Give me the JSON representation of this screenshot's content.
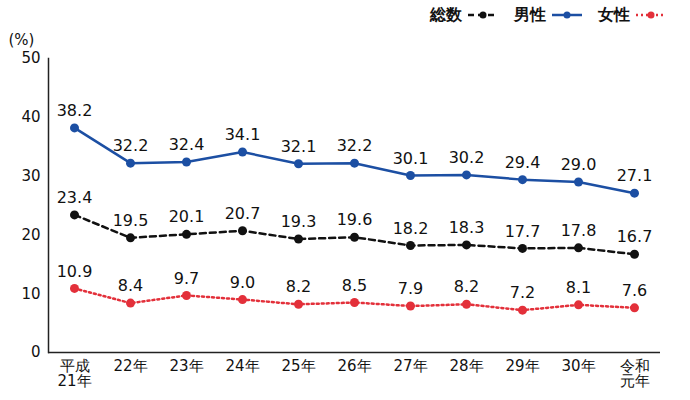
{
  "chart_data": {
    "type": "line",
    "y_label": "(%)",
    "categories": [
      "平成\n21年",
      "22年",
      "23年",
      "24年",
      "25年",
      "26年",
      "27年",
      "28年",
      "29年",
      "30年",
      "令和\n元年"
    ],
    "series": [
      {
        "name": "総数",
        "color": "#111111",
        "line_style": "dashed",
        "marker": "circle",
        "values": [
          23.4,
          19.5,
          20.1,
          20.7,
          19.3,
          19.6,
          18.2,
          18.3,
          17.7,
          17.8,
          16.7
        ],
        "value_labels": [
          "23.4",
          "19.5",
          "20.1",
          "20.7",
          "19.3",
          "19.6",
          "18.2",
          "18.3",
          "17.7",
          "17.8",
          "16.7"
        ]
      },
      {
        "name": "男性",
        "color": "#1c4fa3",
        "line_style": "solid",
        "marker": "circle",
        "values": [
          38.2,
          32.2,
          32.4,
          34.1,
          32.1,
          32.2,
          30.1,
          30.2,
          29.4,
          29.0,
          27.1
        ],
        "value_labels": [
          "38.2",
          "32.2",
          "32.4",
          "34.1",
          "32.1",
          "32.2",
          "30.1",
          "30.2",
          "29.4",
          "29.0",
          "27.1"
        ]
      },
      {
        "name": "女性",
        "color": "#e3303a",
        "line_style": "dotted",
        "marker": "circle",
        "values": [
          10.9,
          8.4,
          9.7,
          9.0,
          8.2,
          8.5,
          7.9,
          8.2,
          7.2,
          8.1,
          7.6
        ],
        "value_labels": [
          "10.9",
          "8.4",
          "9.7",
          "9.0",
          "8.2",
          "8.5",
          "7.9",
          "8.2",
          "7.2",
          "8.1",
          "7.6"
        ]
      }
    ],
    "ylim": [
      0,
      50
    ],
    "yticks": [
      0,
      10,
      20,
      30,
      40,
      50
    ],
    "grid": false,
    "legend": "top-right",
    "data_labels": true
  }
}
